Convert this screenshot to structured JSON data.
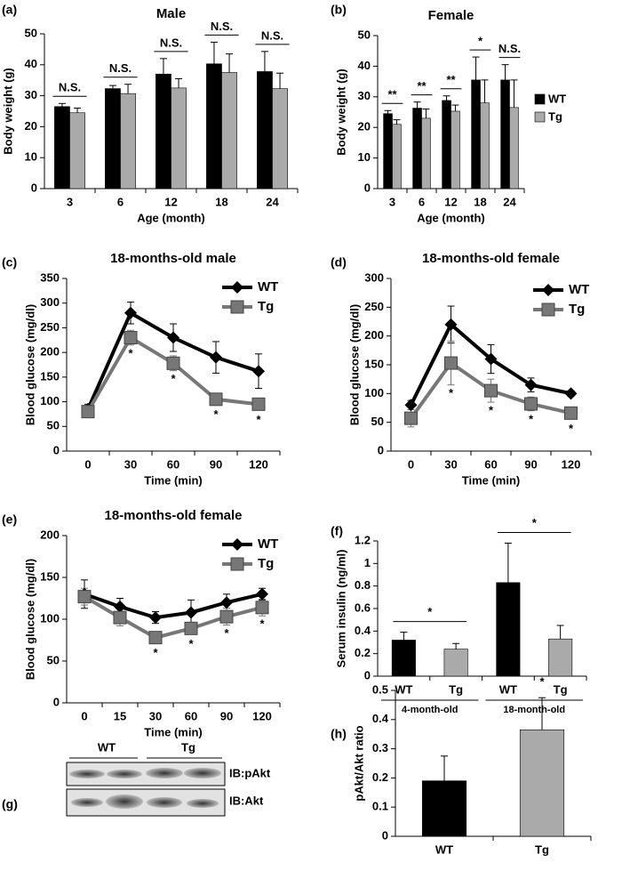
{
  "chart_data": [
    {
      "type": "bar",
      "label": "(a)",
      "title": "Male",
      "xlabel": "Age (month)",
      "ylabel": "Body weight (g)",
      "categories": [
        "3",
        "6",
        "12",
        "18",
        "24"
      ],
      "series": [
        {
          "name": "WT",
          "color": "#000000",
          "values": [
            26.5,
            32.3,
            37,
            40.3,
            37.8
          ],
          "errors": [
            1,
            1,
            5,
            7,
            6.5
          ]
        },
        {
          "name": "Tg",
          "color": "#aaaaaa",
          "values": [
            24.5,
            30.7,
            32.5,
            37.5,
            32.3
          ],
          "errors": [
            1.5,
            3,
            3,
            6,
            5
          ]
        }
      ],
      "annotations": [
        "N.S.",
        "N.S.",
        "N.S.",
        "N.S.",
        "N.S."
      ],
      "ylim": [
        0,
        50
      ],
      "yticks": [
        0,
        10,
        20,
        30,
        40,
        50
      ],
      "legend": false
    },
    {
      "type": "bar",
      "label": "(b)",
      "title": "Female",
      "xlabel": "Age (month)",
      "ylabel": "Body weight (g)",
      "categories": [
        "3",
        "6",
        "12",
        "18",
        "24"
      ],
      "series": [
        {
          "name": "WT",
          "color": "#000000",
          "values": [
            24.5,
            26.3,
            28.8,
            35.5,
            35.5
          ],
          "errors": [
            1,
            2,
            1.5,
            7.5,
            5
          ]
        },
        {
          "name": "Tg",
          "color": "#aaaaaa",
          "values": [
            21,
            23,
            25.3,
            28,
            26.5
          ],
          "errors": [
            1.5,
            3,
            2,
            7.5,
            9
          ]
        }
      ],
      "annotations": [
        "**",
        "**",
        "**",
        "*",
        "N.S."
      ],
      "ylim": [
        0,
        50
      ],
      "yticks": [
        0,
        10,
        20,
        30,
        40,
        50
      ],
      "legend": true
    },
    {
      "type": "line",
      "label": "(c)",
      "title": "18-months-old male",
      "xlabel": "Time (min)",
      "ylabel": "Blood glucose (mg/dl)",
      "categories": [
        "0",
        "30",
        "60",
        "90",
        "120"
      ],
      "series": [
        {
          "name": "WT",
          "color": "#000000",
          "marker": "diamond",
          "values": [
            85,
            280,
            230,
            190,
            162
          ],
          "errors": [
            10,
            22,
            28,
            32,
            35
          ]
        },
        {
          "name": "Tg",
          "color": "#777777",
          "marker": "square",
          "values": [
            80,
            230,
            178,
            105,
            95
          ],
          "errors": [
            8,
            15,
            15,
            8,
            8
          ]
        }
      ],
      "annotations": [
        null,
        "*",
        "*",
        "*",
        "*"
      ],
      "ylim": [
        0,
        350
      ],
      "yticks": [
        0,
        50,
        100,
        150,
        200,
        250,
        300,
        350
      ],
      "legend": true
    },
    {
      "type": "line",
      "label": "(d)",
      "title": "18-months-old female",
      "xlabel": "Time (min)",
      "ylabel": "Blood glucose (mg/dl)",
      "categories": [
        "0",
        "30",
        "60",
        "90",
        "120"
      ],
      "series": [
        {
          "name": "WT",
          "color": "#000000",
          "marker": "diamond",
          "values": [
            80,
            220,
            160,
            115,
            100
          ],
          "errors": [
            8,
            32,
            25,
            12,
            5
          ]
        },
        {
          "name": "Tg",
          "color": "#777777",
          "marker": "square",
          "values": [
            57,
            153,
            105,
            82,
            66
          ],
          "errors": [
            15,
            38,
            20,
            12,
            5
          ]
        }
      ],
      "annotations": [
        null,
        "*",
        "*",
        "*",
        "*"
      ],
      "ylim": [
        0,
        300
      ],
      "yticks": [
        0,
        50,
        100,
        150,
        200,
        250,
        300
      ],
      "legend": true
    },
    {
      "type": "line",
      "label": "(e)",
      "title": "18-months-old female",
      "xlabel": "Time (min)",
      "ylabel": "Blood glucose (mg/dl)",
      "categories": [
        "0",
        "15",
        "30",
        "60",
        "90",
        "120"
      ],
      "series": [
        {
          "name": "WT",
          "color": "#000000",
          "marker": "diamond",
          "values": [
            130,
            115,
            102,
            108,
            120,
            130
          ],
          "errors": [
            17,
            10,
            7,
            15,
            10,
            7
          ]
        },
        {
          "name": "Tg",
          "color": "#777777",
          "marker": "square",
          "values": [
            127,
            102,
            78,
            89,
            103,
            114
          ],
          "errors": [
            10,
            10,
            7,
            7,
            10,
            10
          ]
        }
      ],
      "annotations": [
        null,
        null,
        "*",
        "*",
        "*",
        "*"
      ],
      "ylim": [
        0,
        200
      ],
      "yticks": [
        0,
        50,
        100,
        150,
        200
      ],
      "legend": true
    },
    {
      "type": "bar",
      "label": "(f)",
      "ylabel": "Serum insulin (ng/ml)",
      "categories": [
        "WT",
        "Tg",
        "WT",
        "Tg"
      ],
      "values": [
        0.32,
        0.24,
        0.83,
        0.33
      ],
      "errors": [
        0.07,
        0.05,
        0.35,
        0.12
      ],
      "colors": [
        "#000000",
        "#aaaaaa",
        "#000000",
        "#aaaaaa"
      ],
      "groups": [
        {
          "name": "4-month-old",
          "annotation": "*"
        },
        {
          "name": "18-month-old",
          "annotation": "*"
        }
      ],
      "ylim": [
        0,
        1.2
      ],
      "yticks": [
        0,
        0.2,
        0.4,
        0.6,
        0.8,
        1,
        1.2
      ],
      "legend": false
    },
    {
      "type": "bar",
      "label": "(h)",
      "ylabel": "pAkt/Akt ratio",
      "categories": [
        "WT",
        "Tg"
      ],
      "values": [
        0.19,
        0.365
      ],
      "errors": [
        0.085,
        0.11
      ],
      "colors": [
        "#000000",
        "#aaaaaa"
      ],
      "annotations": [
        null,
        "*"
      ],
      "ylim": [
        0,
        0.5
      ],
      "yticks": [
        0,
        0.1,
        0.2,
        0.3,
        0.4,
        0.5
      ],
      "legend": false
    }
  ],
  "blot": {
    "label": "(g)",
    "groups": [
      "WT",
      "Tg"
    ],
    "rows": [
      "IB:pAkt",
      "IB:Akt"
    ]
  }
}
